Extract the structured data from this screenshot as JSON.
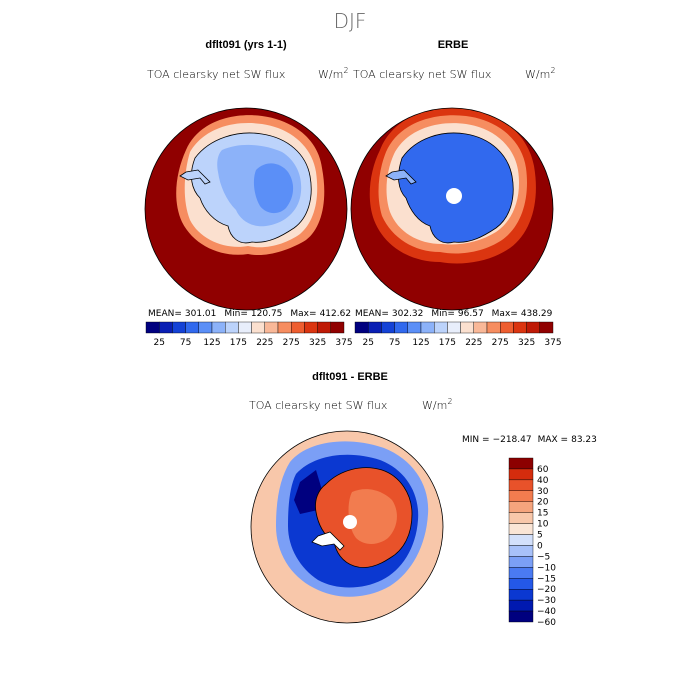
{
  "title": "DJF",
  "colors": {
    "abs_scale": [
      "#00007f",
      "#0a1fb4",
      "#1442d6",
      "#3169ee",
      "#5b8ff7",
      "#8cb2f9",
      "#bcd3fb",
      "#e8eefb",
      "#fbe0cf",
      "#f9b898",
      "#f68d60",
      "#ee5e30",
      "#db3510",
      "#bf1a06",
      "#900000"
    ],
    "diff_scale": [
      "#00007f",
      "#0019b0",
      "#0b38d1",
      "#2458e8",
      "#4a7af2",
      "#7b9ff6",
      "#a8c1f9",
      "#d3e0fb",
      "#fae5d6",
      "#f8c7aa",
      "#f5a47d",
      "#f27c4f",
      "#e8522a",
      "#d42c0d",
      "#8c0000"
    ],
    "coast": "#000000"
  },
  "panels": {
    "model": {
      "heading": "dflt091 (yrs 1-1)",
      "variable": "TOA clearsky net SW flux",
      "units": "W/m",
      "units_sup": "2",
      "stats": {
        "mean_label": "MEAN=",
        "mean": "301.01",
        "min_label": "Min=",
        "min": "120.75",
        "max_label": "Max=",
        "max": "412.62"
      }
    },
    "obs": {
      "heading": "ERBE",
      "variable": "TOA clearsky net SW flux",
      "units": "W/m",
      "units_sup": "2",
      "stats": {
        "mean_label": "MEAN=",
        "mean": "302.32",
        "min_label": "Min=",
        "min": "96.57",
        "max_label": "Max=",
        "max": "438.29"
      }
    },
    "diff": {
      "heading": "dflt091 - ERBE",
      "variable": "TOA clearsky net SW flux",
      "units": "W/m",
      "units_sup": "2",
      "stats": {
        "min_label": "MIN =",
        "min": "−218.47",
        "max_label": "MAX =",
        "max": "83.23"
      }
    }
  },
  "chart_data": [
    {
      "type": "heatmap",
      "title": "dflt091 (yrs 1-1)",
      "projection": "south polar stereographic",
      "variable": "TOA clearsky net SW flux",
      "units": "W/m2",
      "colorbar_ticks": [
        "25",
        "75",
        "125",
        "175",
        "225",
        "275",
        "325",
        "375"
      ],
      "mean": 301.01,
      "min": 120.75,
      "max": 412.62
    },
    {
      "type": "heatmap",
      "title": "ERBE",
      "projection": "south polar stereographic",
      "variable": "TOA clearsky net SW flux",
      "units": "W/m2",
      "colorbar_ticks": [
        "25",
        "75",
        "125",
        "175",
        "225",
        "275",
        "325",
        "375"
      ],
      "mean": 302.32,
      "min": 96.57,
      "max": 438.29
    },
    {
      "type": "heatmap",
      "title": "dflt091 - ERBE",
      "projection": "south polar stereographic",
      "variable": "TOA clearsky net SW flux",
      "units": "W/m2",
      "colorbar_ticks": [
        "60",
        "40",
        "30",
        "20",
        "15",
        "10",
        "5",
        "0",
        "−5",
        "−10",
        "−15",
        "−20",
        "−30",
        "−40",
        "−60"
      ],
      "min": -218.47,
      "max": 83.23
    }
  ]
}
